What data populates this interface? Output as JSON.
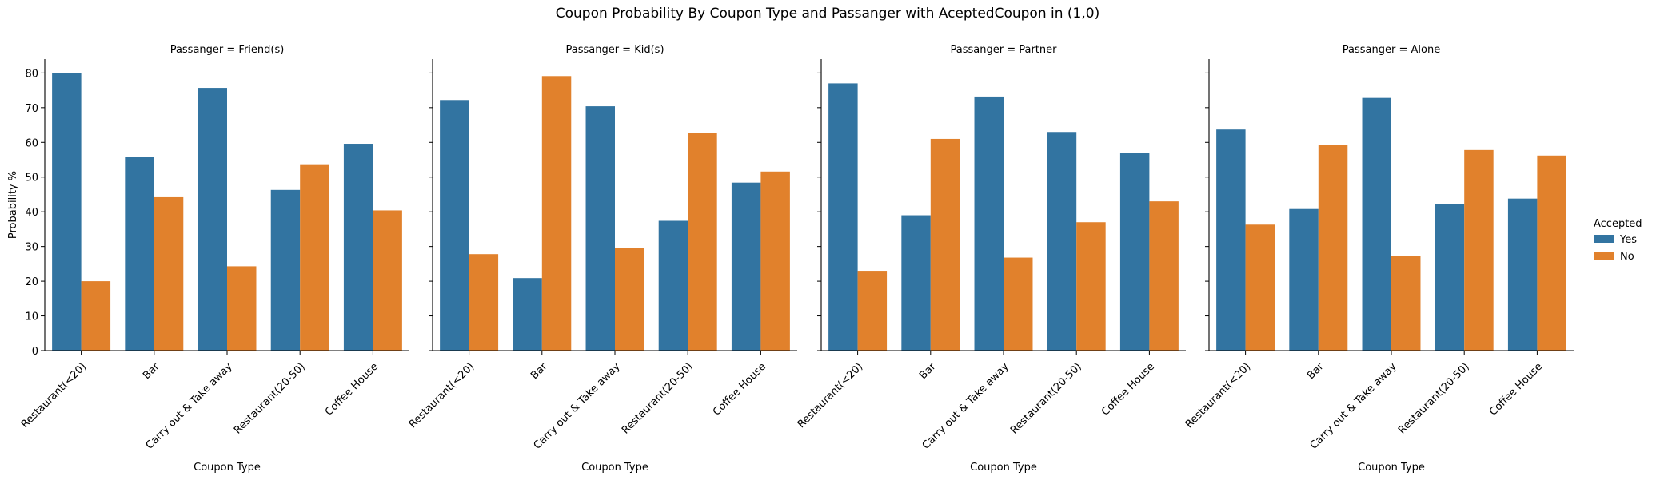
{
  "chart_data": {
    "type": "bar",
    "title": "Coupon Probability By Coupon Type and Passanger with AceptedCoupon in (1,0)",
    "xlabel": "Coupon Type",
    "ylabel": "Probability %",
    "ylim": [
      0,
      84
    ],
    "yticks": [
      0,
      10,
      20,
      30,
      40,
      50,
      60,
      70,
      80
    ],
    "categories": [
      "Restaurant(<20)",
      "Bar",
      "Carry out & Take away",
      "Restaurant(20-50)",
      "Coffee House"
    ],
    "legend": {
      "title": "Accepted",
      "placement": "right",
      "entries": [
        {
          "name": "Yes",
          "color": "#3274a1"
        },
        {
          "name": "No",
          "color": "#e1812c"
        }
      ]
    },
    "grid": false,
    "facets": [
      {
        "title": "Passanger = Friend(s)",
        "series": [
          {
            "name": "Yes",
            "color": "#3274a1",
            "values": [
              80.0,
              55.8,
              75.7,
              46.3,
              59.6
            ]
          },
          {
            "name": "No",
            "color": "#e1812c",
            "values": [
              20.0,
              44.2,
              24.3,
              53.7,
              40.4
            ]
          }
        ]
      },
      {
        "title": "Passanger = Kid(s)",
        "series": [
          {
            "name": "Yes",
            "color": "#3274a1",
            "values": [
              72.2,
              20.9,
              70.4,
              37.4,
              48.4
            ]
          },
          {
            "name": "No",
            "color": "#e1812c",
            "values": [
              27.8,
              79.1,
              29.6,
              62.6,
              51.6
            ]
          }
        ]
      },
      {
        "title": "Passanger = Partner",
        "series": [
          {
            "name": "Yes",
            "color": "#3274a1",
            "values": [
              77.0,
              39.0,
              73.2,
              63.0,
              57.0
            ]
          },
          {
            "name": "No",
            "color": "#e1812c",
            "values": [
              23.0,
              61.0,
              26.8,
              37.0,
              43.0
            ]
          }
        ]
      },
      {
        "title": "Passanger = Alone",
        "series": [
          {
            "name": "Yes",
            "color": "#3274a1",
            "values": [
              63.7,
              40.8,
              72.8,
              42.2,
              43.8
            ]
          },
          {
            "name": "No",
            "color": "#e1812c",
            "values": [
              36.3,
              59.2,
              27.2,
              57.8,
              56.2
            ]
          }
        ]
      }
    ]
  }
}
